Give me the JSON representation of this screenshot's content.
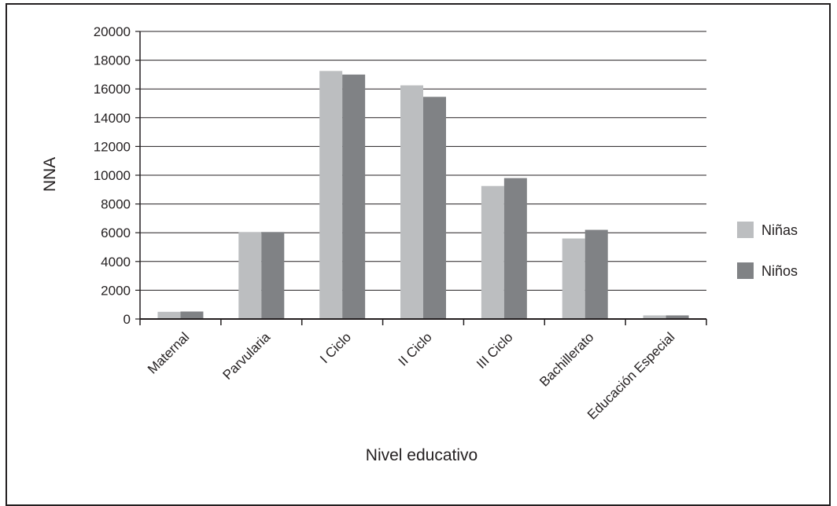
{
  "chart_data": {
    "type": "bar",
    "title": "",
    "xlabel": "Nivel educativo",
    "ylabel": "NNA",
    "ylim": [
      0,
      20000
    ],
    "yticks": [
      0,
      2000,
      4000,
      6000,
      8000,
      10000,
      12000,
      14000,
      16000,
      18000,
      20000
    ],
    "grid": true,
    "legend_position": "right",
    "categories": [
      "Maternal",
      "Parvularia",
      "I Ciclo",
      "II Ciclo",
      "III Ciclo",
      "Bachillerato",
      "Educación Especial"
    ],
    "series": [
      {
        "name": "Niñas",
        "color": "#bcbec0",
        "values": [
          500,
          6050,
          17250,
          16250,
          9250,
          5600,
          250
        ]
      },
      {
        "name": "Niños",
        "color": "#808285",
        "values": [
          520,
          6050,
          17000,
          15450,
          9800,
          6200,
          250
        ]
      }
    ]
  }
}
